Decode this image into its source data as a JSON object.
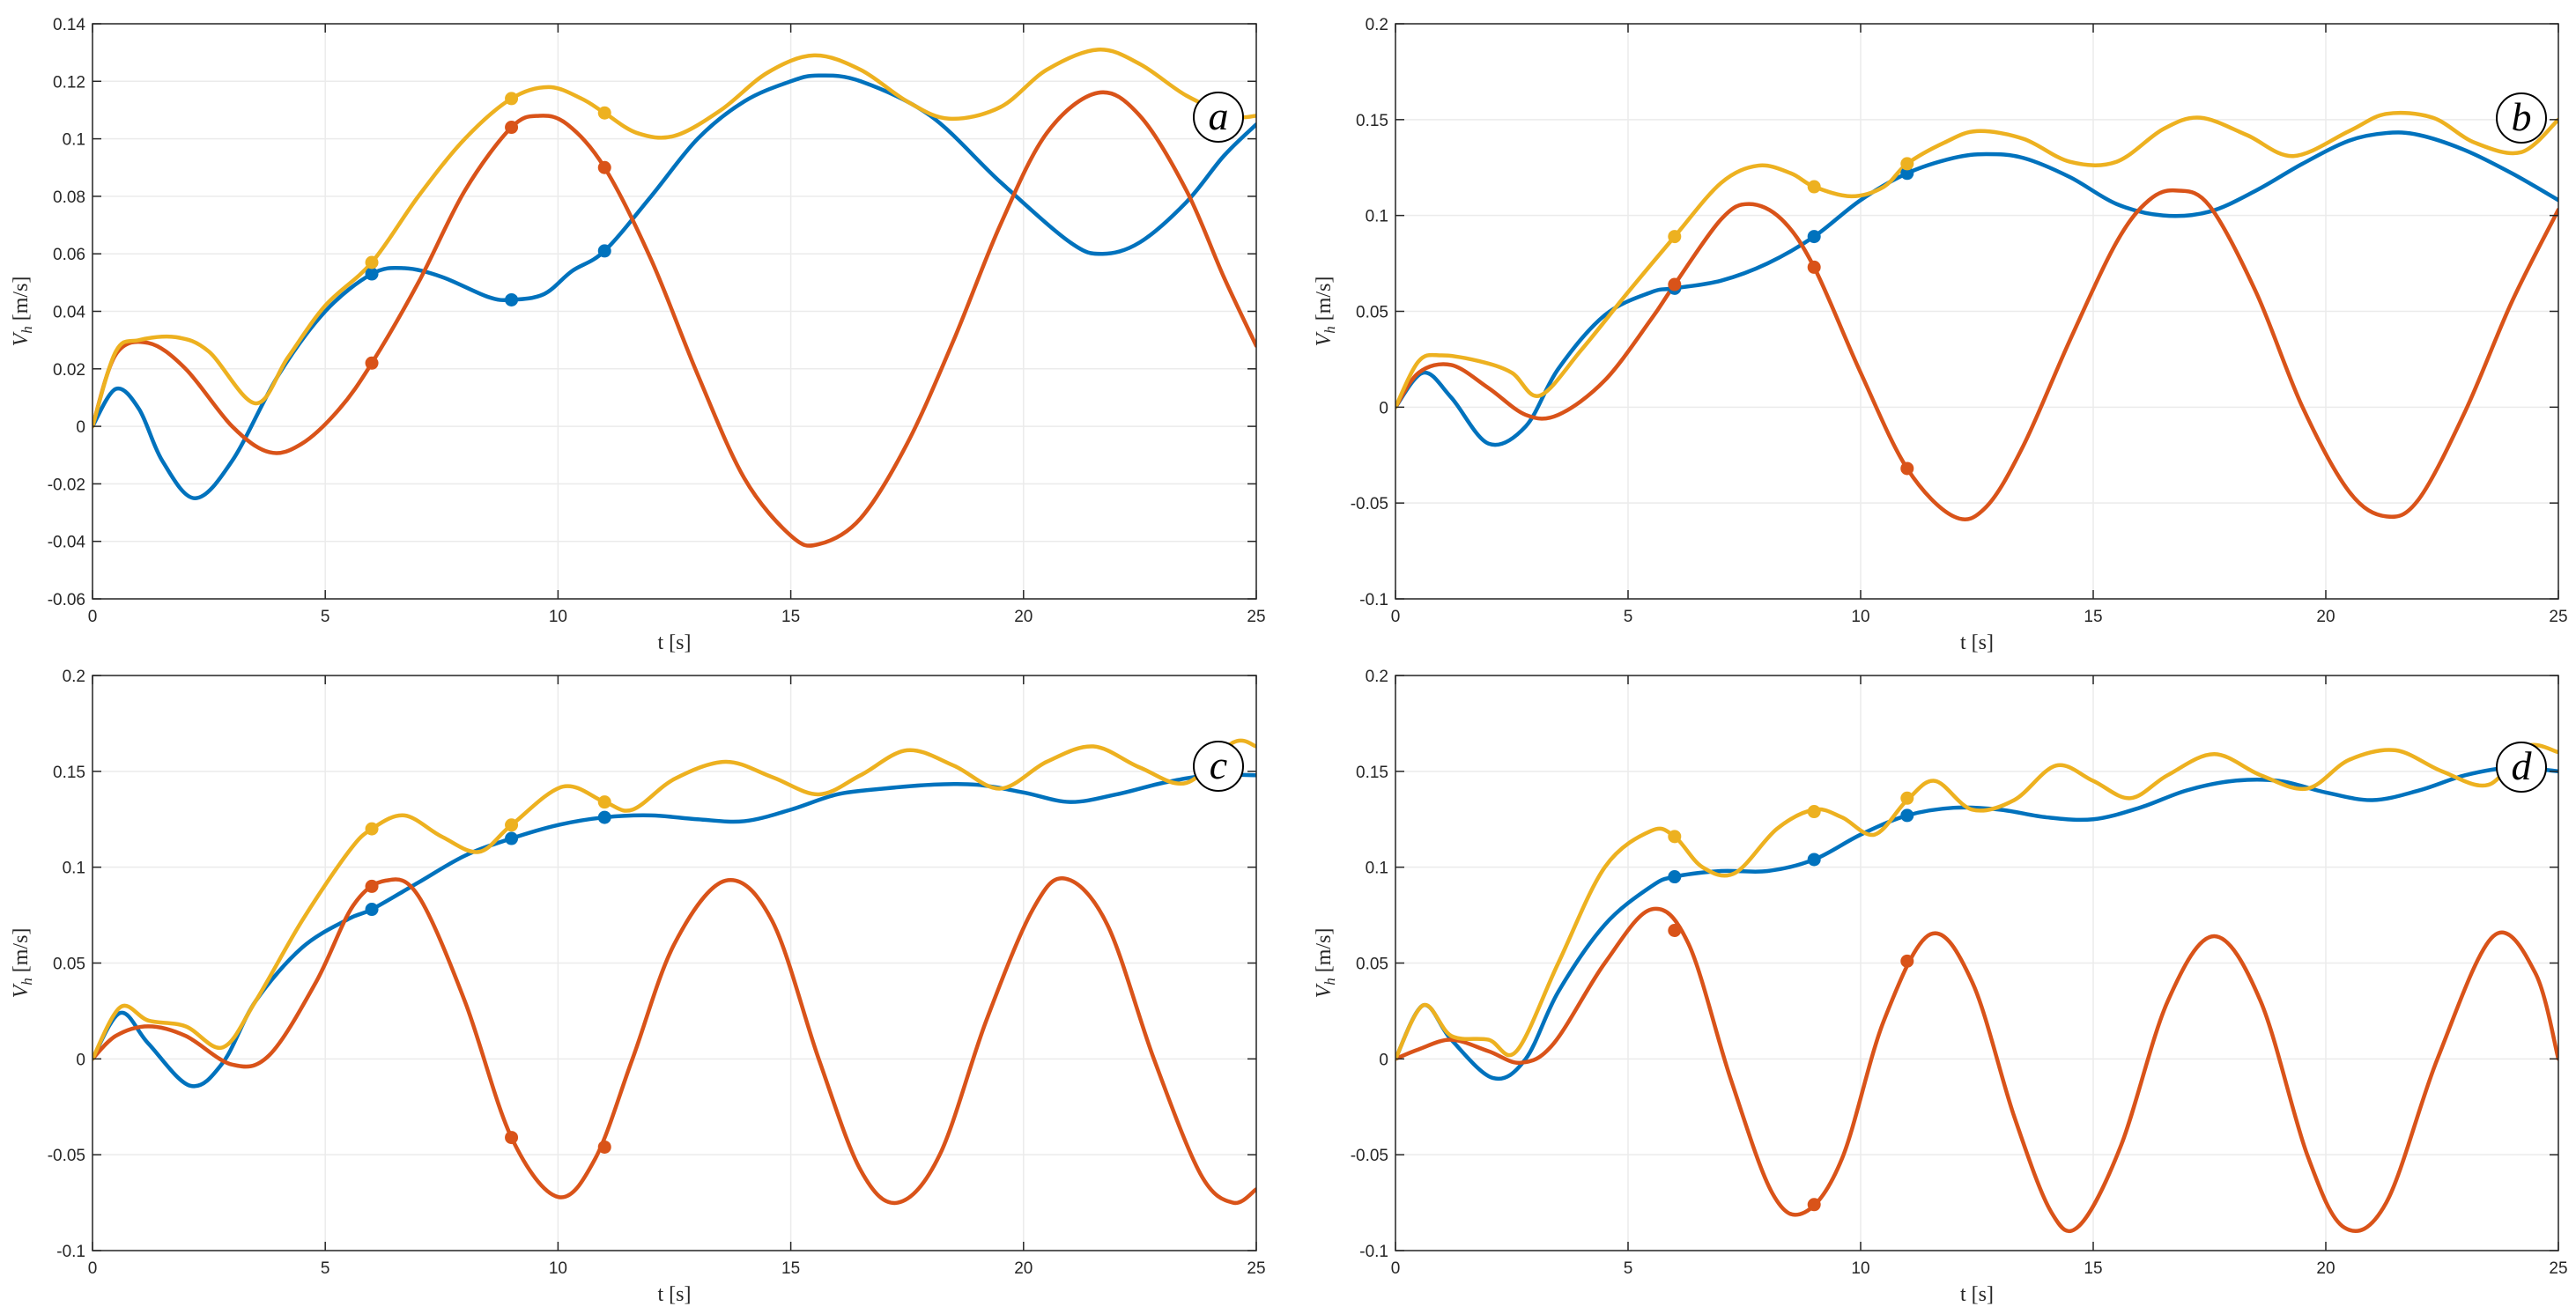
{
  "colors": {
    "blue": "#0072BD",
    "red": "#D95319",
    "yellow": "#EDB120",
    "grid": "#ebebeb",
    "axis": "#262626"
  },
  "chart_data": [
    {
      "type": "line",
      "panel": "a",
      "xlabel": "t [s]",
      "ylabel": "V_h [m/s]",
      "ylabel_main": "V",
      "ylabel_sub": "h",
      "ylabel_unit": " [m/s]",
      "xlim": [
        0,
        25
      ],
      "ylim": [
        -0.06,
        0.14
      ],
      "xticks": [
        0,
        5,
        10,
        15,
        20,
        25
      ],
      "yticks": [
        -0.06,
        -0.04,
        -0.02,
        0,
        0.02,
        0.04,
        0.06,
        0.08,
        0.1,
        0.12,
        0.14
      ],
      "ytick_labels": [
        "-0.06",
        "-0.04",
        "-0.02",
        "0",
        "0.02",
        "0.04",
        "0.06",
        "0.08",
        "0.1",
        "0.12",
        "0.14"
      ],
      "xtick_labels": [
        "0",
        "5",
        "10",
        "15",
        "20",
        "25"
      ],
      "series": [
        {
          "name": "blue",
          "color": "#0072BD",
          "x": [
            0,
            0.5,
            1,
            1.5,
            2.2,
            3,
            4,
            5,
            6,
            6.7,
            7.5,
            8.5,
            9,
            9.7,
            10.3,
            11,
            12,
            13,
            14,
            15,
            15.6,
            16.5,
            18,
            19.5,
            21,
            21.7,
            22.5,
            23.5,
            24.3,
            25
          ],
          "y": [
            0,
            0.013,
            0.006,
            -0.012,
            -0.025,
            -0.012,
            0.018,
            0.04,
            0.053,
            0.055,
            0.052,
            0.045,
            0.044,
            0.046,
            0.054,
            0.061,
            0.08,
            0.1,
            0.113,
            0.12,
            0.122,
            0.12,
            0.108,
            0.085,
            0.064,
            0.06,
            0.064,
            0.078,
            0.094,
            0.105
          ],
          "markers_x": [
            6,
            9,
            11
          ],
          "markers_y": [
            0.053,
            0.044,
            0.061
          ]
        },
        {
          "name": "red",
          "color": "#D95319",
          "x": [
            0,
            0.5,
            1.2,
            2,
            3,
            3.8,
            4.5,
            5.3,
            6,
            7,
            8,
            9,
            9.6,
            10.2,
            11,
            12,
            13,
            14,
            15,
            15.6,
            16.5,
            17.5,
            18.5,
            19.5,
            20.5,
            21.6,
            22.5,
            23.5,
            24.3,
            25
          ],
          "y": [
            0,
            0.025,
            0.029,
            0.02,
            0.0,
            -0.009,
            -0.006,
            0.006,
            0.022,
            0.05,
            0.082,
            0.104,
            0.108,
            0.105,
            0.09,
            0.058,
            0.018,
            -0.018,
            -0.038,
            -0.041,
            -0.032,
            -0.006,
            0.03,
            0.07,
            0.102,
            0.116,
            0.108,
            0.082,
            0.052,
            0.028
          ],
          "markers_x": [
            6,
            9,
            11
          ],
          "markers_y": [
            0.022,
            0.104,
            0.09
          ]
        },
        {
          "name": "yellow",
          "color": "#EDB120",
          "x": [
            0,
            0.5,
            1,
            1.8,
            2.5,
            3.5,
            4.2,
            5,
            6,
            7,
            8,
            9,
            9.8,
            10.5,
            11,
            11.7,
            12.5,
            13.5,
            14.5,
            15.5,
            16.5,
            17.5,
            18.4,
            19.5,
            20.5,
            21.6,
            22.5,
            23.5,
            24.5,
            25
          ],
          "y": [
            0,
            0.026,
            0.03,
            0.031,
            0.026,
            0.008,
            0.024,
            0.042,
            0.057,
            0.08,
            0.1,
            0.114,
            0.118,
            0.114,
            0.109,
            0.102,
            0.101,
            0.11,
            0.123,
            0.129,
            0.124,
            0.113,
            0.107,
            0.111,
            0.124,
            0.131,
            0.126,
            0.115,
            0.108,
            0.108
          ],
          "markers_x": [
            6,
            9,
            11
          ],
          "markers_y": [
            0.057,
            0.114,
            0.109
          ]
        }
      ]
    },
    {
      "type": "line",
      "panel": "b",
      "xlabel": "t [s]",
      "ylabel": "V_h [m/s]",
      "ylabel_main": "V",
      "ylabel_sub": "h",
      "ylabel_unit": " [m/s]",
      "xlim": [
        0,
        25
      ],
      "ylim": [
        -0.1,
        0.2
      ],
      "xticks": [
        0,
        5,
        10,
        15,
        20,
        25
      ],
      "yticks": [
        -0.1,
        -0.05,
        0,
        0.05,
        0.1,
        0.15,
        0.2
      ],
      "ytick_labels": [
        "-0.1",
        "-0.05",
        "0",
        "0.05",
        "0.1",
        "0.15",
        "0.2"
      ],
      "xtick_labels": [
        "0",
        "5",
        "10",
        "15",
        "20",
        "25"
      ],
      "series": [
        {
          "name": "blue",
          "color": "#0072BD",
          "x": [
            0,
            0.6,
            1.2,
            2,
            2.8,
            3.5,
            4.5,
            5.5,
            6,
            7,
            8,
            9,
            10,
            11,
            12,
            12.7,
            13.5,
            14.5,
            15.5,
            16.5,
            17.5,
            18.5,
            19.5,
            20.5,
            21.3,
            22,
            23,
            24,
            25
          ],
          "y": [
            0,
            0.018,
            0.005,
            -0.019,
            -0.01,
            0.02,
            0.048,
            0.06,
            0.062,
            0.066,
            0.075,
            0.089,
            0.108,
            0.122,
            0.13,
            0.132,
            0.13,
            0.12,
            0.106,
            0.1,
            0.102,
            0.113,
            0.127,
            0.139,
            0.143,
            0.142,
            0.134,
            0.122,
            0.108
          ],
          "markers_x": [
            6,
            9,
            11
          ],
          "markers_y": [
            0.062,
            0.089,
            0.122
          ]
        },
        {
          "name": "red",
          "color": "#D95319",
          "x": [
            0,
            0.5,
            1.2,
            2,
            2.8,
            3.5,
            4.5,
            5.5,
            6,
            7,
            7.6,
            8.3,
            9,
            10,
            11,
            12,
            12.7,
            13.5,
            14.5,
            15.5,
            16.2,
            16.8,
            17.5,
            18.5,
            19.5,
            20.5,
            21.3,
            22,
            23,
            24,
            25
          ],
          "y": [
            0,
            0.018,
            0.022,
            0.01,
            -0.004,
            -0.004,
            0.014,
            0.046,
            0.064,
            0.098,
            0.106,
            0.098,
            0.073,
            0.018,
            -0.032,
            -0.057,
            -0.052,
            -0.02,
            0.035,
            0.086,
            0.108,
            0.113,
            0.105,
            0.06,
            0.0,
            -0.044,
            -0.057,
            -0.048,
            -0.002,
            0.055,
            0.103
          ],
          "markers_x": [
            6,
            9,
            11
          ],
          "markers_y": [
            0.064,
            0.073,
            -0.032
          ]
        },
        {
          "name": "yellow",
          "color": "#EDB120",
          "x": [
            0,
            0.5,
            1,
            1.8,
            2.5,
            3.1,
            4,
            5,
            6,
            7,
            7.8,
            8.5,
            9,
            9.8,
            10.5,
            11,
            11.8,
            12.5,
            13.5,
            14.5,
            15.5,
            16.5,
            17.3,
            18.3,
            19.3,
            20.5,
            21.3,
            22.3,
            23.2,
            24.2,
            25
          ],
          "y": [
            0,
            0.024,
            0.027,
            0.024,
            0.018,
            0.006,
            0.03,
            0.06,
            0.089,
            0.117,
            0.126,
            0.122,
            0.115,
            0.11,
            0.115,
            0.127,
            0.138,
            0.144,
            0.14,
            0.128,
            0.128,
            0.145,
            0.151,
            0.142,
            0.131,
            0.144,
            0.153,
            0.151,
            0.138,
            0.133,
            0.15
          ],
          "markers_x": [
            6,
            9,
            11
          ],
          "markers_y": [
            0.089,
            0.115,
            0.127
          ]
        }
      ]
    },
    {
      "type": "line",
      "panel": "c",
      "xlabel": "t [s]",
      "ylabel": "V_h [m/s]",
      "ylabel_main": "V",
      "ylabel_sub": "h",
      "ylabel_unit": " [m/s]",
      "xlim": [
        0,
        25
      ],
      "ylim": [
        -0.1,
        0.2
      ],
      "xticks": [
        0,
        5,
        10,
        15,
        20,
        25
      ],
      "yticks": [
        -0.1,
        -0.05,
        0,
        0.05,
        0.1,
        0.15,
        0.2
      ],
      "ytick_labels": [
        "-0.1",
        "-0.05",
        "0",
        "0.05",
        "0.1",
        "0.15",
        "0.2"
      ],
      "xtick_labels": [
        "0",
        "5",
        "10",
        "15",
        "20",
        "25"
      ],
      "series": [
        {
          "name": "blue",
          "color": "#0072BD",
          "x": [
            0,
            0.6,
            1.2,
            2.1,
            2.8,
            3.5,
            4.5,
            5.5,
            6,
            7,
            8,
            9,
            10,
            11,
            12,
            13,
            14,
            15,
            16,
            17,
            18,
            19,
            20,
            21,
            22,
            23,
            24,
            25
          ],
          "y": [
            0,
            0.024,
            0.008,
            -0.014,
            -0.002,
            0.03,
            0.058,
            0.073,
            0.078,
            0.092,
            0.106,
            0.115,
            0.122,
            0.126,
            0.127,
            0.125,
            0.124,
            0.13,
            0.138,
            0.141,
            0.143,
            0.143,
            0.139,
            0.134,
            0.138,
            0.144,
            0.148,
            0.148
          ],
          "markers_x": [
            6,
            9,
            11
          ],
          "markers_y": [
            0.078,
            0.115,
            0.126
          ]
        },
        {
          "name": "red",
          "color": "#D95319",
          "x": [
            0,
            0.5,
            1.2,
            2,
            3,
            3.8,
            4.8,
            5.6,
            6.3,
            7,
            8,
            9,
            10,
            10.8,
            11.6,
            12.5,
            13.6,
            14.6,
            15.6,
            16.5,
            17.3,
            18.2,
            19.2,
            20.2,
            20.9,
            21.8,
            22.8,
            23.8,
            24.5,
            25
          ],
          "y": [
            0,
            0.012,
            0.017,
            0.012,
            -0.003,
            0.002,
            0.04,
            0.08,
            0.093,
            0.085,
            0.03,
            -0.041,
            -0.072,
            -0.052,
            0.0,
            0.06,
            0.093,
            0.072,
            0.0,
            -0.058,
            -0.075,
            -0.05,
            0.02,
            0.078,
            0.094,
            0.07,
            0.0,
            -0.06,
            -0.075,
            -0.068
          ],
          "markers_x": [
            6,
            9,
            11
          ],
          "markers_y": [
            0.09,
            -0.041,
            -0.046
          ]
        },
        {
          "name": "yellow",
          "color": "#EDB120",
          "x": [
            0,
            0.6,
            1.2,
            2,
            2.8,
            3.5,
            4.5,
            5.5,
            6,
            6.7,
            7.5,
            8.3,
            9,
            10.1,
            11,
            11.6,
            12.5,
            13.6,
            14.6,
            15.6,
            16.5,
            17.5,
            18.5,
            19.5,
            20.5,
            21.5,
            22.5,
            23.5,
            24.5,
            25
          ],
          "y": [
            0,
            0.027,
            0.02,
            0.017,
            0.006,
            0.03,
            0.072,
            0.108,
            0.12,
            0.127,
            0.116,
            0.108,
            0.122,
            0.142,
            0.134,
            0.13,
            0.146,
            0.155,
            0.147,
            0.138,
            0.148,
            0.161,
            0.153,
            0.141,
            0.155,
            0.163,
            0.152,
            0.144,
            0.165,
            0.163
          ],
          "markers_x": [
            6,
            9,
            11
          ],
          "markers_y": [
            0.12,
            0.122,
            0.134
          ]
        }
      ]
    },
    {
      "type": "line",
      "panel": "d",
      "xlabel": "t [s]",
      "ylabel": "V_h [m/s]",
      "ylabel_main": "V",
      "ylabel_sub": "h",
      "ylabel_unit": " [m/s]",
      "xlim": [
        0,
        25
      ],
      "ylim": [
        -0.1,
        0.2
      ],
      "xticks": [
        0,
        5,
        10,
        15,
        20,
        25
      ],
      "yticks": [
        -0.1,
        -0.05,
        0,
        0.05,
        0.1,
        0.15,
        0.2
      ],
      "ytick_labels": [
        "-0.1",
        "-0.05",
        "0",
        "0.05",
        "0.1",
        "0.15",
        "0.2"
      ],
      "xtick_labels": [
        "0",
        "5",
        "10",
        "15",
        "20",
        "25"
      ],
      "series": [
        {
          "name": "blue",
          "color": "#0072BD",
          "x": [
            0,
            0.6,
            1.2,
            2.1,
            2.8,
            3.5,
            4.5,
            5.5,
            6,
            7,
            8,
            9,
            10,
            11,
            12,
            13,
            14,
            15,
            16,
            17,
            18,
            19,
            20,
            21,
            22,
            23,
            24,
            25
          ],
          "y": [
            0,
            0.028,
            0.01,
            -0.01,
            0.0,
            0.035,
            0.07,
            0.09,
            0.095,
            0.098,
            0.098,
            0.104,
            0.117,
            0.127,
            0.131,
            0.13,
            0.126,
            0.125,
            0.131,
            0.14,
            0.145,
            0.145,
            0.139,
            0.135,
            0.14,
            0.148,
            0.152,
            0.15
          ],
          "markers_x": [
            6,
            9,
            11
          ],
          "markers_y": [
            0.095,
            0.104,
            0.127
          ]
        },
        {
          "name": "red",
          "color": "#D95319",
          "x": [
            0,
            0.5,
            1.2,
            2,
            2.7,
            3.4,
            4.5,
            5.5,
            6.3,
            7.2,
            8.1,
            8.8,
            9.6,
            10.5,
            11.5,
            12.4,
            13.3,
            14.1,
            14.7,
            15.6,
            16.6,
            17.6,
            18.6,
            19.6,
            20.4,
            21.3,
            22.4,
            23.6,
            24.5,
            25
          ],
          "y": [
            0,
            0.005,
            0.01,
            0.004,
            -0.002,
            0.008,
            0.05,
            0.078,
            0.06,
            -0.01,
            -0.07,
            -0.08,
            -0.052,
            0.02,
            0.065,
            0.04,
            -0.03,
            -0.08,
            -0.087,
            -0.045,
            0.03,
            0.064,
            0.03,
            -0.05,
            -0.088,
            -0.075,
            0.0,
            0.064,
            0.045,
            0.0
          ],
          "markers_x": [
            6,
            9,
            11
          ],
          "markers_y": [
            0.067,
            -0.076,
            0.051
          ]
        },
        {
          "name": "yellow",
          "color": "#EDB120",
          "x": [
            0,
            0.6,
            1.2,
            2,
            2.6,
            3.5,
            4.5,
            5.5,
            6,
            6.6,
            7.3,
            8.2,
            9,
            9.6,
            10.3,
            11,
            11.6,
            12.4,
            13.3,
            14.2,
            15,
            15.8,
            16.6,
            17.6,
            18.6,
            19.6,
            20.5,
            21.5,
            22.5,
            23.5,
            24.3,
            25
          ],
          "y": [
            0,
            0.028,
            0.012,
            0.01,
            0.004,
            0.05,
            0.1,
            0.119,
            0.116,
            0.1,
            0.097,
            0.12,
            0.13,
            0.126,
            0.117,
            0.135,
            0.145,
            0.13,
            0.135,
            0.153,
            0.145,
            0.136,
            0.148,
            0.159,
            0.148,
            0.141,
            0.156,
            0.161,
            0.15,
            0.143,
            0.163,
            0.16
          ],
          "markers_x": [
            6,
            9,
            11
          ],
          "markers_y": [
            0.116,
            0.129,
            0.136
          ]
        }
      ]
    }
  ]
}
